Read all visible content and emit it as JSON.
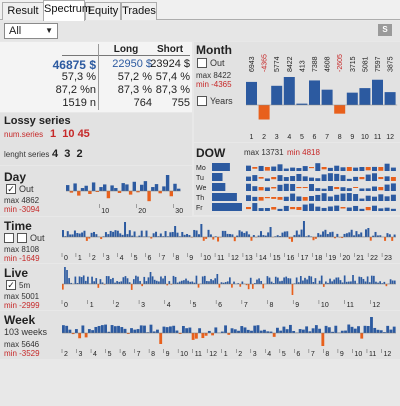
{
  "tabs": [
    {
      "label": "Result"
    },
    {
      "label": "Spectrum"
    },
    {
      "label": "Equity"
    },
    {
      "label": "Trades"
    }
  ],
  "toolbar": {
    "filter_value": "All",
    "s_button": "S"
  },
  "summary": {
    "headers": {
      "long": "Long",
      "short": "Short"
    },
    "rows": [
      {
        "total": "46875 $",
        "long": "22950 $",
        "short": "23924 $"
      },
      {
        "total": "57,3 %",
        "long": "57,2 %",
        "short": "57,4 %"
      },
      {
        "total": "87,2 %n",
        "long": "87,3 %",
        "short": "87,3 %"
      },
      {
        "total": "1519 n",
        "long": "764",
        "short": "755"
      }
    ]
  },
  "month": {
    "title": "Month",
    "out_label": "Out",
    "years_label": "Years",
    "max": "max 8422",
    "min": "min -4365",
    "labels": [
      "6943",
      "-4365",
      "5774",
      "8422",
      "413",
      "7388",
      "4608",
      "-2605",
      "3715",
      "5081",
      "7597",
      "3875"
    ],
    "values": [
      6943,
      -4365,
      5774,
      8422,
      413,
      7388,
      4608,
      -2605,
      3715,
      5081,
      7597,
      3875
    ],
    "ticks": [
      "1",
      "2",
      "3",
      "4",
      "5",
      "6",
      "7",
      "8",
      "9",
      "10",
      "11",
      "12"
    ]
  },
  "lossy": {
    "title": "Lossy series",
    "num_label": "num.series",
    "num_values": [
      "1",
      "10",
      "45"
    ],
    "len_label": "lenght series",
    "len_values": [
      "4",
      "3",
      "2"
    ]
  },
  "dow": {
    "title": "DOW",
    "max": "max 13731",
    "min": "min 4818",
    "days": [
      "Mo",
      "Tu",
      "We",
      "Th",
      "Fr"
    ],
    "totals": [
      8200,
      4818,
      6100,
      11400,
      13731
    ]
  },
  "day": {
    "title": "Day",
    "out_label": "Out",
    "max": "max 4862",
    "min": "min -3094",
    "ticks": [
      "10",
      "20",
      "30"
    ],
    "values": [
      1800,
      -500,
      2300,
      -1400,
      900,
      1600,
      -900,
      2600,
      -300,
      1200,
      2000,
      -2200,
      1700,
      900,
      -600,
      2400,
      2000,
      -1100,
      2800,
      -400,
      1900,
      3000,
      -3094,
      1200,
      2100,
      -700,
      1400,
      4862,
      -1600,
      2200,
      700
    ]
  },
  "time": {
    "title": "Time",
    "out_label": "Out",
    "max": "max 8108",
    "min": "min -1649",
    "ticks": [
      "0",
      "1",
      "2",
      "3",
      "4",
      "5",
      "6",
      "7",
      "8",
      "9",
      "10",
      "11",
      "12",
      "13",
      "14",
      "15",
      "16",
      "17",
      "18",
      "19",
      "20",
      "21",
      "22",
      "23"
    ]
  },
  "live": {
    "title": "Live",
    "check_label": "5m",
    "max": "max 5001",
    "min": "min -2999",
    "ticks": [
      "0",
      "1",
      "2",
      "3",
      "4",
      "5",
      "6",
      "7",
      "8",
      "9",
      "10",
      "11",
      "12"
    ]
  },
  "week": {
    "title": "Week",
    "weeks_label": "103 weeks",
    "max": "max 5646",
    "min": "min -3529",
    "ticks": [
      "2",
      "3",
      "4",
      "5",
      "6",
      "7",
      "8",
      "9",
      "10",
      "11",
      "12",
      "1",
      "2",
      "3",
      "4",
      "5",
      "6",
      "7",
      "8",
      "9",
      "10",
      "11",
      "12"
    ]
  },
  "colors": {
    "blue": "#2c5aa0",
    "orange": "#e8601c",
    "red": "#c62828"
  }
}
